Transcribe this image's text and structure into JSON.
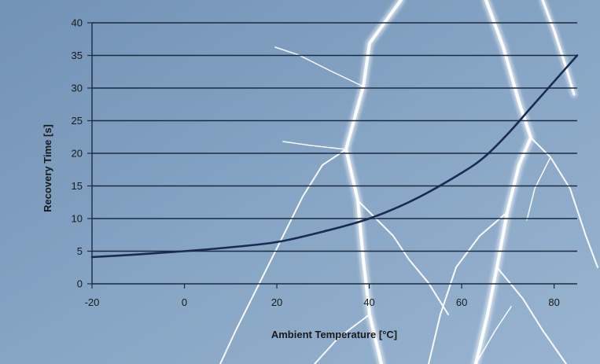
{
  "chart_data": {
    "type": "line",
    "title": "",
    "xlabel": "Ambient Temperature [°C]",
    "ylabel": "Recovery Time [s]",
    "xlim": [
      -20,
      85
    ],
    "ylim": [
      0,
      40
    ],
    "x_ticks": [
      "-20",
      "0",
      "20",
      "40",
      "60",
      "80"
    ],
    "y_ticks": [
      "0",
      "5",
      "10",
      "15",
      "20",
      "25",
      "30",
      "35",
      "40"
    ],
    "grid": "horizontal",
    "legend": "none",
    "series": [
      {
        "x": [
          -20,
          -10,
          0,
          10,
          20,
          30,
          40,
          50,
          60,
          65,
          70,
          75,
          80,
          85
        ],
        "y": [
          4.1,
          4.5,
          5.0,
          5.6,
          6.4,
          8.0,
          10.0,
          13.0,
          17.0,
          19.5,
          23.0,
          27.0,
          31.0,
          35.0
        ]
      }
    ],
    "colors": {
      "background": "#7e9cbd",
      "line": "#1a2b52",
      "grid": "#1c2a40",
      "text": "#1a1a1a"
    }
  }
}
